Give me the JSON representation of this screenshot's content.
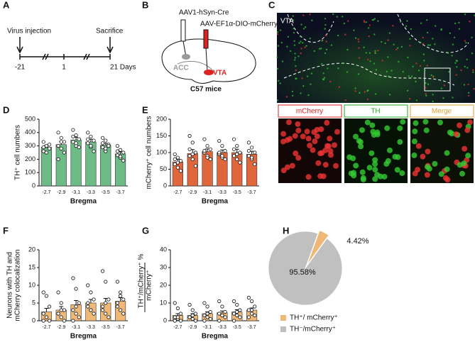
{
  "panels": {
    "A": {
      "letter": "A",
      "start_label": "Virus injection",
      "end_label": "Sacrifice",
      "ticks": [
        "-21",
        "1",
        "21 Days"
      ]
    },
    "B": {
      "letter": "B",
      "virus1": "AAV1-hSyn-Cre",
      "virus2": "AAV-EF1α-DIO-mCherry",
      "region1": "ACC",
      "region2": "VTA",
      "caption": "C57 mice"
    },
    "C": {
      "letter": "C",
      "region": "VTA",
      "channels": [
        "mCherry",
        "TH",
        "Merge"
      ]
    }
  },
  "chart_data": [
    {
      "type": "bar",
      "label": "D",
      "ylabel": [
        "TH⁺ cell numbers"
      ],
      "xlabel": "Bregma",
      "color": "#6dbb87",
      "categories": [
        "-2.7",
        "-2.9",
        "-3.1",
        "-3.3",
        "-3.5",
        "-3.7"
      ],
      "values": [
        290,
        310,
        345,
        330,
        305,
        240
      ],
      "errors": [
        15,
        25,
        20,
        20,
        15,
        15
      ],
      "points": [
        [
          330,
          300,
          280,
          260,
          250,
          310,
          290,
          300
        ],
        [
          400,
          360,
          330,
          300,
          280,
          250,
          200,
          330
        ],
        [
          420,
          380,
          350,
          330,
          300,
          290,
          370,
          320
        ],
        [
          400,
          370,
          340,
          320,
          290,
          260,
          350,
          300
        ],
        [
          360,
          340,
          310,
          290,
          260,
          300,
          320,
          280
        ],
        [
          300,
          270,
          250,
          230,
          210,
          190,
          260,
          220
        ]
      ],
      "ylim": [
        0,
        500
      ],
      "yticks": [
        0,
        100,
        200,
        300,
        400,
        500
      ]
    },
    {
      "type": "bar",
      "label": "E",
      "ylabel": [
        "mCherry⁺ cell numbers"
      ],
      "xlabel": "Bregma",
      "color": "#e0663c",
      "categories": [
        "-2.7",
        "-2.9",
        "-3.1",
        "-3.3",
        "-3.5",
        "-3.7"
      ],
      "values": [
        72,
        97,
        103,
        100,
        100,
        95
      ],
      "errors": [
        8,
        12,
        8,
        8,
        10,
        9
      ],
      "points": [
        [
          95,
          85,
          75,
          65,
          55,
          45,
          80,
          70
        ],
        [
          150,
          130,
          100,
          90,
          80,
          60,
          110,
          95
        ],
        [
          140,
          120,
          110,
          100,
          90,
          80,
          105,
          85
        ],
        [
          135,
          120,
          105,
          95,
          85,
          80,
          100,
          90
        ],
        [
          140,
          120,
          100,
          90,
          80,
          70,
          110,
          95
        ],
        [
          130,
          115,
          100,
          90,
          80,
          65,
          105,
          85
        ]
      ],
      "ylim": [
        0,
        200
      ],
      "yticks": [
        0,
        50,
        100,
        150,
        200
      ]
    },
    {
      "type": "bar",
      "label": "F",
      "ylabel": [
        "Neurons with TH and",
        "mCherry colocalization"
      ],
      "xlabel": "Bregma",
      "color": "#f0b877",
      "categories": [
        "-2.7",
        "-2.9",
        "-3.1",
        "-3.3",
        "-3.5",
        "-3.7"
      ],
      "values": [
        2.5,
        3,
        4.5,
        5,
        5,
        5.5
      ],
      "errors": [
        1,
        1,
        1.2,
        1,
        1.3,
        1
      ],
      "points": [
        [
          8,
          7,
          4,
          2,
          1,
          0,
          0,
          1
        ],
        [
          8,
          5,
          3,
          2,
          1,
          0,
          2,
          3
        ],
        [
          12,
          9,
          5,
          3,
          2,
          1,
          0,
          4
        ],
        [
          10,
          8,
          6,
          4,
          3,
          2,
          5,
          3
        ],
        [
          14,
          11,
          6,
          4,
          2,
          1,
          3,
          5
        ],
        [
          11,
          8,
          6,
          4,
          3,
          2,
          5,
          7
        ]
      ],
      "ylim": [
        0,
        20
      ],
      "yticks": [
        0,
        5,
        10,
        15,
        20
      ]
    },
    {
      "type": "bar",
      "label": "G",
      "ylabel": [
        "TH⁺/mCherry⁺",
        "mCherry⁺"
      ],
      "yunit": "%",
      "xlabel": "Bregma",
      "color": "#f0b877",
      "categories": [
        "-2.7",
        "-2.9",
        "-3.1",
        "-3.3",
        "-3.5",
        "-3.7"
      ],
      "values": [
        3,
        3,
        4,
        4.5,
        5,
        6
      ],
      "errors": [
        1,
        1,
        1,
        1,
        1.2,
        1.2
      ],
      "points": [
        [
          10,
          7,
          4,
          2,
          1,
          0,
          0,
          2
        ],
        [
          9,
          6,
          4,
          2,
          1,
          0,
          2,
          3
        ],
        [
          10,
          8,
          5,
          3,
          2,
          1,
          0,
          4
        ],
        [
          11,
          8,
          5,
          4,
          3,
          2,
          0,
          3
        ],
        [
          11,
          9,
          6,
          4,
          3,
          2,
          0,
          5
        ],
        [
          13,
          11,
          8,
          6,
          4,
          3,
          2,
          6
        ]
      ],
      "ylim": [
        0,
        40
      ],
      "yticks": [
        0,
        10,
        20,
        30,
        40
      ]
    },
    {
      "type": "pie",
      "label": "H",
      "categories": [
        "TH⁺/ mCherry⁺",
        "TH⁻/mCherry⁺"
      ],
      "values": [
        4.42,
        95.58
      ],
      "value_labels": [
        "4.42%",
        "95.58%"
      ],
      "colors": [
        "#f0b877",
        "#c0c0c0"
      ]
    }
  ]
}
